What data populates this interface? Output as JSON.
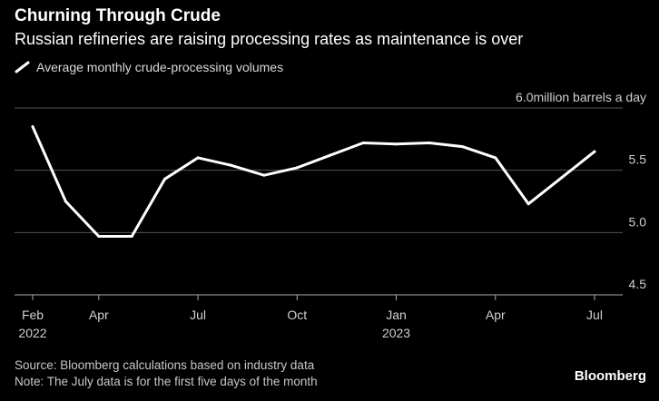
{
  "header": {
    "title": "Churning Through Crude",
    "subtitle": "Russian refineries are raising processing rates as maintenance is over"
  },
  "footer": {
    "source": "Source: Bloomberg calculations based on industry data",
    "note": "Note: The July data is for the first five days of the month",
    "brand": "Bloomberg"
  },
  "colors": {
    "background": "#000000",
    "line": "#ffffff",
    "grid": "#555555",
    "text": "#ffffff"
  },
  "chart_data": {
    "type": "line",
    "title": "Churning Through Crude",
    "subtitle": "Russian refineries are raising processing rates as maintenance is over",
    "ylabel": "million barrels a day",
    "ylim": [
      4.5,
      6.0
    ],
    "yticks": [
      {
        "value": 6.0,
        "label": "6.0"
      },
      {
        "value": 5.5,
        "label": "5.5"
      },
      {
        "value": 5.0,
        "label": "5.0"
      },
      {
        "value": 4.5,
        "label": "4.5"
      }
    ],
    "top_tick_unit": "million barrels a day",
    "xticks": [
      {
        "index": 0,
        "label": "Feb",
        "sublabel": "2022"
      },
      {
        "index": 2,
        "label": "Apr",
        "sublabel": ""
      },
      {
        "index": 5,
        "label": "Jul",
        "sublabel": ""
      },
      {
        "index": 8,
        "label": "Oct",
        "sublabel": ""
      },
      {
        "index": 11,
        "label": "Jan",
        "sublabel": "2023"
      },
      {
        "index": 14,
        "label": "Apr",
        "sublabel": ""
      },
      {
        "index": 17,
        "label": "Jul",
        "sublabel": ""
      }
    ],
    "legend": "top-left",
    "series": [
      {
        "name": "Average monthly crude-processing volumes",
        "categories": [
          "Feb 2022",
          "Mar 2022",
          "Apr 2022",
          "May 2022",
          "Jun 2022",
          "Jul 2022",
          "Aug 2022",
          "Sep 2022",
          "Oct 2022",
          "Nov 2022",
          "Dec 2022",
          "Jan 2023",
          "Feb 2023",
          "Mar 2023",
          "Apr 2023",
          "May 2023",
          "Jun 2023",
          "Jul 2023"
        ],
        "values": [
          5.85,
          5.25,
          4.97,
          4.97,
          5.43,
          5.6,
          5.54,
          5.46,
          5.52,
          5.62,
          5.72,
          5.71,
          5.72,
          5.69,
          5.6,
          5.23,
          5.44,
          5.65
        ]
      }
    ]
  }
}
